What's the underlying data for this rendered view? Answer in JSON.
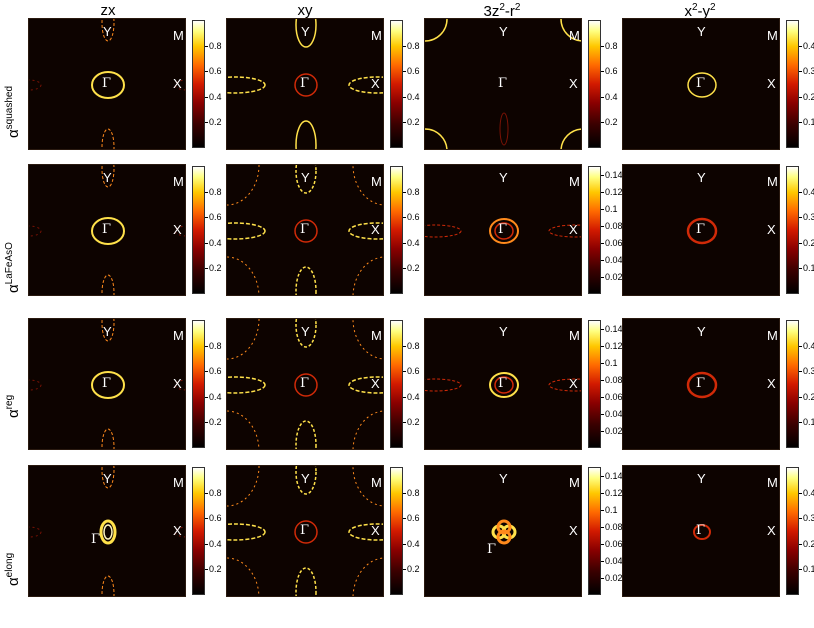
{
  "columns": [
    {
      "text": "zx"
    },
    {
      "text": "xy"
    },
    {
      "base": "3z",
      "sup1": "2",
      "mid": "-r",
      "sup2": "2"
    },
    {
      "base": "x",
      "sup1": "2",
      "mid": "-y",
      "sup2": "2"
    }
  ],
  "rows": [
    {
      "label": "α",
      "sup": "squashed"
    },
    {
      "label": "α",
      "sup": "LaFeAsO"
    },
    {
      "label": "α",
      "sup": "reg"
    },
    {
      "label": "α",
      "sup": "elong"
    }
  ],
  "symmetry_points": {
    "gamma": "Γ",
    "x": "X",
    "y": "Y",
    "m": "M"
  },
  "colormap": {
    "name": "hot",
    "stops": [
      "#000000",
      "#8a0000",
      "#ff6a00",
      "#ffc800",
      "#ffffff"
    ]
  },
  "chart_data": {
    "type": "heatmap",
    "description_axes": "Brillouin zone maps of orbital weight on the Fermi surface",
    "colorbars": [
      [
        {
          "max": 1.0,
          "ticks": [
            "0.8",
            "0.6",
            "0.4",
            "0.2"
          ],
          "tick_vals": [
            0.8,
            0.6,
            0.4,
            0.2
          ]
        },
        {
          "max": 1.0,
          "ticks": [
            "0.8",
            "0.6",
            "0.4",
            "0.2"
          ],
          "tick_vals": [
            0.8,
            0.6,
            0.4,
            0.2
          ]
        },
        {
          "max": 1.0,
          "ticks": [
            "0.8",
            "0.6",
            "0.4",
            "0.2"
          ],
          "tick_vals": [
            0.8,
            0.6,
            0.4,
            0.2
          ]
        },
        {
          "max": 0.5,
          "ticks": [
            "0.4",
            "0.3",
            "0.2",
            "0.1"
          ],
          "tick_vals": [
            0.4,
            0.3,
            0.2,
            0.1
          ]
        }
      ],
      [
        {
          "max": 1.0,
          "ticks": [
            "0.8",
            "0.6",
            "0.4",
            "0.2"
          ],
          "tick_vals": [
            0.8,
            0.6,
            0.4,
            0.2
          ]
        },
        {
          "max": 1.0,
          "ticks": [
            "0.8",
            "0.6",
            "0.4",
            "0.2"
          ],
          "tick_vals": [
            0.8,
            0.6,
            0.4,
            0.2
          ]
        },
        {
          "max": 0.15,
          "ticks": [
            "0.14",
            "0.12",
            "0.1",
            "0.08",
            "0.06",
            "0.04",
            "0.02"
          ],
          "tick_vals": [
            0.14,
            0.12,
            0.1,
            0.08,
            0.06,
            0.04,
            0.02
          ]
        },
        {
          "max": 0.5,
          "ticks": [
            "0.4",
            "0.3",
            "0.2",
            "0.1"
          ],
          "tick_vals": [
            0.4,
            0.3,
            0.2,
            0.1
          ]
        }
      ],
      [
        {
          "max": 1.0,
          "ticks": [
            "0.8",
            "0.6",
            "0.4",
            "0.2"
          ],
          "tick_vals": [
            0.8,
            0.6,
            0.4,
            0.2
          ]
        },
        {
          "max": 1.0,
          "ticks": [
            "0.8",
            "0.6",
            "0.4",
            "0.2"
          ],
          "tick_vals": [
            0.8,
            0.6,
            0.4,
            0.2
          ]
        },
        {
          "max": 0.15,
          "ticks": [
            "0.14",
            "0.12",
            "0.1",
            "0.08",
            "0.06",
            "0.04",
            "0.02"
          ],
          "tick_vals": [
            0.14,
            0.12,
            0.1,
            0.08,
            0.06,
            0.04,
            0.02
          ]
        },
        {
          "max": 0.5,
          "ticks": [
            "0.4",
            "0.3",
            "0.2",
            "0.1"
          ],
          "tick_vals": [
            0.4,
            0.3,
            0.2,
            0.1
          ]
        }
      ],
      [
        {
          "max": 1.0,
          "ticks": [
            "0.8",
            "0.6",
            "0.4",
            "0.2"
          ],
          "tick_vals": [
            0.8,
            0.6,
            0.4,
            0.2
          ]
        },
        {
          "max": 1.0,
          "ticks": [
            "0.8",
            "0.6",
            "0.4",
            "0.2"
          ],
          "tick_vals": [
            0.8,
            0.6,
            0.4,
            0.2
          ]
        },
        {
          "max": 0.15,
          "ticks": [
            "0.14",
            "0.12",
            "0.1",
            "0.08",
            "0.06",
            "0.04",
            "0.02"
          ],
          "tick_vals": [
            0.14,
            0.12,
            0.1,
            0.08,
            0.06,
            0.04,
            0.02
          ]
        },
        {
          "max": 0.5,
          "ticks": [
            "0.4",
            "0.3",
            "0.2",
            "0.1"
          ],
          "tick_vals": [
            0.4,
            0.3,
            0.2,
            0.1
          ]
        }
      ]
    ]
  }
}
